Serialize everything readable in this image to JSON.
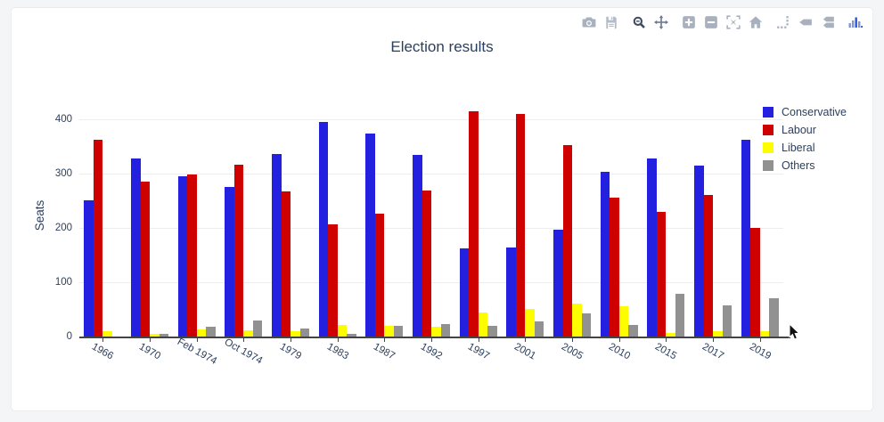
{
  "page": {
    "background_color": "#f4f5f6",
    "card_color": "#ffffff"
  },
  "modebar": {
    "icon_color": "#a9b1bf",
    "active_icon_color": "#3f4a63",
    "icons": [
      "camera-icon",
      "save-icon",
      "zoom-icon",
      "pan-icon",
      "zoom-in-icon",
      "zoom-out-icon",
      "autoscale-icon",
      "reset-axes-icon",
      "spike-lines-icon",
      "hover-closest-icon",
      "hover-compare-icon",
      "plotly-logo-icon"
    ]
  },
  "chart_data": {
    "type": "bar",
    "title": "Election results",
    "xlabel": "",
    "ylabel": "Seats",
    "categories": [
      "1966",
      "1970",
      "Feb 1974",
      "Oct 1974",
      "1979",
      "1983",
      "1987",
      "1992",
      "1997",
      "2001",
      "2005",
      "2010",
      "2015",
      "2017",
      "2019"
    ],
    "series": [
      {
        "name": "Conservative",
        "color": "#2420e0",
        "values": [
          253,
          330,
          297,
          277,
          339,
          397,
          376,
          336,
          165,
          166,
          198,
          306,
          330,
          317,
          365
        ]
      },
      {
        "name": "Labour",
        "color": "#ce0100",
        "values": [
          364,
          288,
          301,
          319,
          269,
          209,
          229,
          271,
          418,
          413,
          355,
          258,
          232,
          262,
          202
        ]
      },
      {
        "name": "Liberal",
        "color": "#fdfd00",
        "values": [
          12,
          6,
          14,
          13,
          11,
          23,
          22,
          20,
          46,
          52,
          62,
          57,
          8,
          12,
          11
        ]
      },
      {
        "name": "Others",
        "color": "#919191",
        "values": [
          2,
          7,
          20,
          32,
          16,
          7,
          22,
          24,
          22,
          29,
          44,
          23,
          80,
          59,
          72
        ]
      }
    ],
    "yticks": [
      0,
      100,
      200,
      300,
      400
    ],
    "ylim": [
      0,
      450
    ],
    "grid": true,
    "legend_position": "right",
    "axis_color": "#444444",
    "grid_color": "#ebedef",
    "label_color": "#2a3f5f"
  }
}
